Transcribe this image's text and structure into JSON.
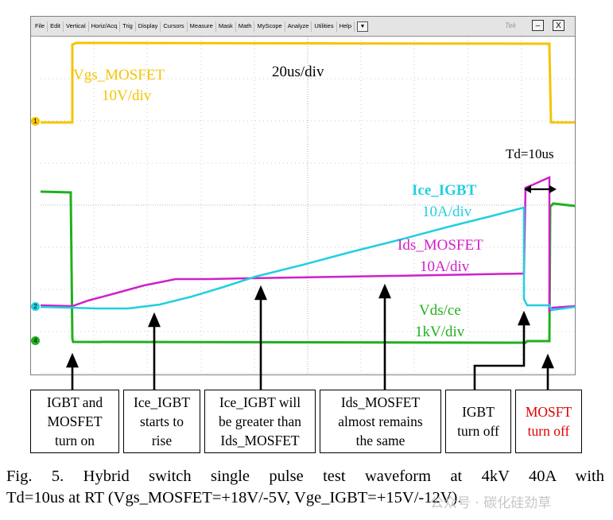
{
  "menu": {
    "items": [
      "File",
      "Edit",
      "Vertical",
      "Horiz/Acq",
      "Trig",
      "Display",
      "Cursors",
      "Measure",
      "Mask",
      "Math",
      "MyScope",
      "Analyze",
      "Utilities",
      "Help"
    ],
    "dropdown": "▼",
    "brand": "Tek",
    "minimize": "–",
    "close": "X"
  },
  "channel_markers": {
    "ch1": "1",
    "ch2": "2",
    "ch4": "4"
  },
  "labels": {
    "vgs_name": "Vgs_MOSFET",
    "vgs_scale": "10V/div",
    "timebase": "20us/div",
    "td": "Td=10us",
    "ice_name": "Ice_IGBT",
    "ice_scale": "10A/div",
    "ids_name": "Ids_MOSFET",
    "ids_scale": "10A/div",
    "vds_name": "Vds/ce",
    "vds_scale": "1kV/div"
  },
  "colors": {
    "vgs": "#f4c400",
    "ice": "#22cfe0",
    "ids": "#d020c8",
    "vds": "#20b020",
    "mosft_text": "#e00000"
  },
  "annotations": [
    {
      "line1": "IGBT and",
      "line2": "MOSFET",
      "line3": "turn on"
    },
    {
      "line1": "Ice_IGBT",
      "line2": "starts to",
      "line3": "rise"
    },
    {
      "line1": "Ice_IGBT will",
      "line2": "be greater than",
      "line3": "Ids_MOSFET"
    },
    {
      "line1": "Ids_MOSFET",
      "line2": "almost remains",
      "line3": "the same"
    },
    {
      "line1": "IGBT",
      "line2": "turn off"
    },
    {
      "line1": "MOSFT",
      "line2": "turn off"
    }
  ],
  "caption": {
    "line1": "Fig. 5. Hybrid switch single pulse test waveform at 4kV 40A with",
    "line2": "Td=10us at RT (Vgs_MOSFET=+18V/-5V, Vge_IGBT=+15V/-12V)."
  },
  "watermark": "公众号 · 碳化硅劲草"
}
